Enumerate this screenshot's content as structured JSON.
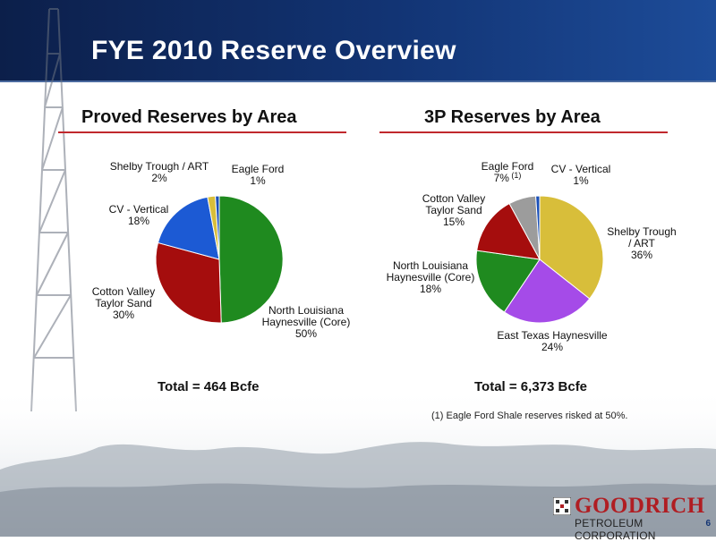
{
  "title": "FYE 2010 Reserve Overview",
  "colors": {
    "green": "#1f8a1f",
    "red": "#a50d0d",
    "blue": "#1c5ad4",
    "yellow": "#d8be3a",
    "purple": "#a54be8",
    "gray": "#9c9c9c",
    "darkblue": "#1a4fb8",
    "accent": "#c0282d",
    "header": "#123474"
  },
  "footnote": "(1)  Eagle Ford Shale reserves risked at 50%.",
  "logo": {
    "line1": "GOODRICH",
    "line2": "PETROLEUM CORPORATION"
  },
  "page_number": "6",
  "chart_data": [
    {
      "type": "pie",
      "title": "Proved Reserves by Area",
      "total": "Total = 464 Bcfe",
      "slices": [
        {
          "label": [
            "North Louisiana",
            "Haynesville (Core)"
          ],
          "value": 50,
          "pct": "50%",
          "color": "#1f8a1f"
        },
        {
          "label": [
            "Cotton Valley",
            "Taylor Sand"
          ],
          "value": 30,
          "pct": "30%",
          "color": "#a50d0d"
        },
        {
          "label": [
            "CV - Vertical"
          ],
          "value": 18,
          "pct": "18%",
          "color": "#1c5ad4"
        },
        {
          "label": [
            "Shelby Trough / ART"
          ],
          "value": 2,
          "pct": "2%",
          "color": "#d8be3a"
        },
        {
          "label": [
            "Eagle Ford"
          ],
          "value": 1,
          "pct": "1%",
          "color": "#1a4fb8"
        }
      ]
    },
    {
      "type": "pie",
      "title": "3P Reserves by Area",
      "total": "Total = 6,373 Bcfe",
      "slices": [
        {
          "label": [
            "Shelby Trough",
            "/ ART"
          ],
          "value": 36,
          "pct": "36%",
          "color": "#d8be3a"
        },
        {
          "label": [
            "East Texas Haynesville"
          ],
          "value": 24,
          "pct": "24%",
          "color": "#a54be8"
        },
        {
          "label": [
            "North Louisiana",
            "Haynesville (Core)"
          ],
          "value": 18,
          "pct": "18%",
          "color": "#1f8a1f"
        },
        {
          "label": [
            "Cotton Valley",
            "Taylor Sand"
          ],
          "value": 15,
          "pct": "15%",
          "color": "#a50d0d"
        },
        {
          "label": [
            "Eagle Ford"
          ],
          "value": 7,
          "pct": "7%",
          "sup": "(1)",
          "color": "#9c9c9c"
        },
        {
          "label": [
            "CV - Vertical"
          ],
          "value": 1,
          "pct": "1%",
          "color": "#1a4fb8"
        }
      ]
    }
  ]
}
